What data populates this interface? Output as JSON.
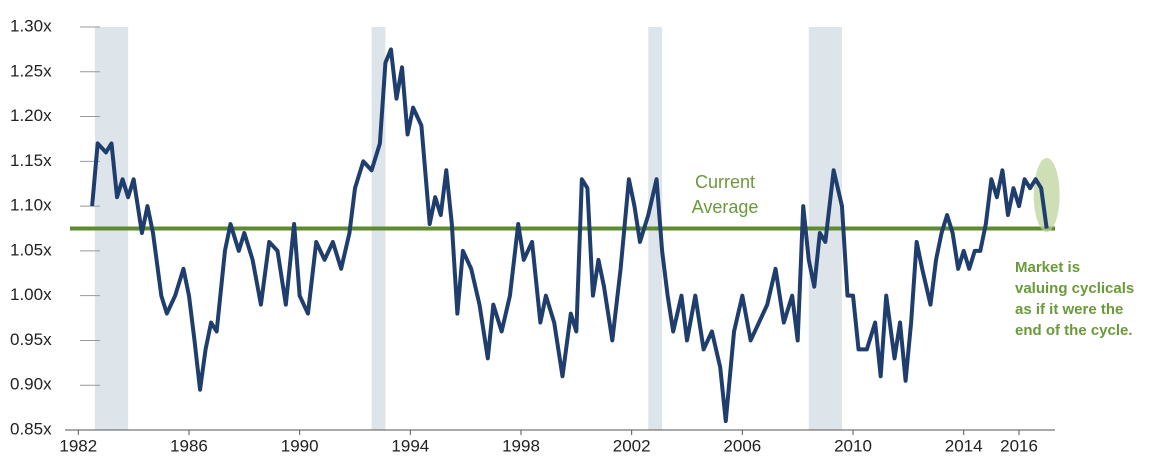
{
  "chart_data": {
    "type": "line",
    "x": [
      1982.5,
      1982.7,
      1983,
      1983.2,
      1983.4,
      1983.6,
      1983.8,
      1984,
      1984.3,
      1984.5,
      1984.7,
      1985,
      1985.2,
      1985.5,
      1985.8,
      1986,
      1986.2,
      1986.4,
      1986.6,
      1986.8,
      1987,
      1987.3,
      1987.5,
      1987.8,
      1988,
      1988.3,
      1988.6,
      1988.9,
      1989.2,
      1989.5,
      1989.8,
      1990,
      1990.3,
      1990.6,
      1990.9,
      1991.2,
      1991.5,
      1991.8,
      1992,
      1992.3,
      1992.6,
      1992.9,
      1993.1,
      1993.3,
      1993.5,
      1993.7,
      1993.9,
      1994.1,
      1994.4,
      1994.7,
      1994.9,
      1995.1,
      1995.3,
      1995.5,
      1995.7,
      1995.9,
      1996.2,
      1996.5,
      1996.8,
      1997,
      1997.3,
      1997.6,
      1997.9,
      1998.1,
      1998.4,
      1998.7,
      1998.9,
      1999.2,
      1999.5,
      1999.8,
      2000,
      2000.2,
      2000.4,
      2000.6,
      2000.8,
      2001,
      2001.3,
      2001.6,
      2001.9,
      2002.1,
      2002.3,
      2002.6,
      2002.9,
      2003.1,
      2003.3,
      2003.5,
      2003.8,
      2004,
      2004.3,
      2004.6,
      2004.9,
      2005.2,
      2005.4,
      2005.7,
      2006,
      2006.3,
      2006.6,
      2006.9,
      2007.2,
      2007.5,
      2007.8,
      2008,
      2008.2,
      2008.4,
      2008.6,
      2008.8,
      2009,
      2009.3,
      2009.6,
      2009.8,
      2010,
      2010.2,
      2010.5,
      2010.8,
      2011,
      2011.2,
      2011.5,
      2011.7,
      2011.9,
      2012.1,
      2012.3,
      2012.5,
      2012.8,
      2013,
      2013.2,
      2013.4,
      2013.6,
      2013.8,
      2014,
      2014.2,
      2014.4,
      2014.6,
      2014.8,
      2015,
      2015.2,
      2015.4,
      2015.6,
      2015.8,
      2016,
      2016.2,
      2016.4,
      2016.6,
      2016.8,
      2017
    ],
    "series": [
      {
        "color": "#1f3e6e",
        "values": [
          1.1,
          1.17,
          1.16,
          1.17,
          1.11,
          1.13,
          1.11,
          1.13,
          1.07,
          1.1,
          1.07,
          1.0,
          0.98,
          1.0,
          1.03,
          1.0,
          0.95,
          0.895,
          0.94,
          0.97,
          0.96,
          1.05,
          1.08,
          1.05,
          1.07,
          1.04,
          0.99,
          1.06,
          1.05,
          0.99,
          1.08,
          1.0,
          0.98,
          1.06,
          1.04,
          1.06,
          1.03,
          1.07,
          1.12,
          1.15,
          1.14,
          1.17,
          1.26,
          1.275,
          1.22,
          1.255,
          1.18,
          1.21,
          1.19,
          1.08,
          1.11,
          1.09,
          1.14,
          1.08,
          0.98,
          1.05,
          1.03,
          0.99,
          0.93,
          0.99,
          0.96,
          1.0,
          1.08,
          1.04,
          1.06,
          0.97,
          1.0,
          0.97,
          0.91,
          0.98,
          0.96,
          1.13,
          1.12,
          1.0,
          1.04,
          1.01,
          0.95,
          1.03,
          1.13,
          1.1,
          1.06,
          1.09,
          1.13,
          1.05,
          1.0,
          0.96,
          1.0,
          0.95,
          1.0,
          0.94,
          0.96,
          0.92,
          0.86,
          0.96,
          1.0,
          0.95,
          0.97,
          0.99,
          1.03,
          0.97,
          1.0,
          0.95,
          1.1,
          1.04,
          1.01,
          1.07,
          1.06,
          1.14,
          1.1,
          1.0,
          1.0,
          0.94,
          0.94,
          0.97,
          0.91,
          1.0,
          0.93,
          0.97,
          0.905,
          0.97,
          1.06,
          1.03,
          0.99,
          1.04,
          1.07,
          1.09,
          1.07,
          1.03,
          1.05,
          1.03,
          1.05,
          1.05,
          1.08,
          1.13,
          1.11,
          1.14,
          1.09,
          1.12,
          1.1,
          1.13,
          1.12,
          1.13,
          1.12,
          1.075
        ]
      }
    ],
    "average": 1.075,
    "average_label": [
      "Current",
      "Average"
    ],
    "average_color": "#5e8a30",
    "recessions": [
      [
        1982.6,
        1983.8
      ],
      [
        1992.6,
        1993.1
      ],
      [
        2002.6,
        2003.1
      ],
      [
        2008.4,
        2009.6
      ]
    ],
    "recession_color": "#dde5ea",
    "annotation": [
      "Market is",
      "valuing cyclicals",
      "as if it were the",
      "end of the cycle."
    ],
    "xlim": [
      1981.7,
      2017.3
    ],
    "xticks": [
      1982,
      1986,
      1990,
      1994,
      1998,
      2002,
      2006,
      2010,
      2014,
      2016
    ],
    "ylim": [
      0.85,
      1.3
    ],
    "yticks": [
      {
        "value": 0.85,
        "label": "0.85x"
      },
      {
        "value": 0.9,
        "label": "0.90x"
      },
      {
        "value": 0.95,
        "label": "0.95x"
      },
      {
        "value": 1.0,
        "label": "1.00x"
      },
      {
        "value": 1.05,
        "label": "1.05x"
      },
      {
        "value": 1.1,
        "label": "1.10x"
      },
      {
        "value": 1.15,
        "label": "1.15x"
      },
      {
        "value": 1.2,
        "label": "1.20x"
      },
      {
        "value": 1.25,
        "label": "1.25x"
      },
      {
        "value": 1.3,
        "label": "1.30x"
      }
    ]
  }
}
